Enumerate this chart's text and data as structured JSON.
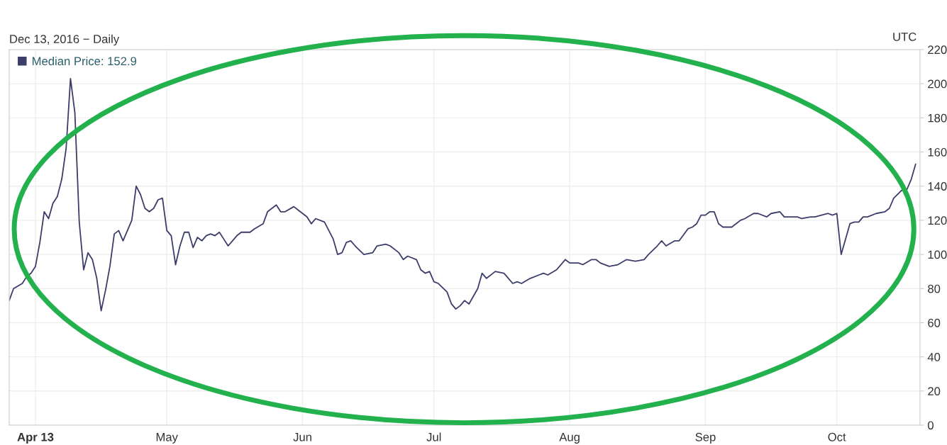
{
  "chart_data": {
    "type": "line",
    "subtitle": "Dec 13, 2016 − Daily",
    "annotations": [
      "UTC"
    ],
    "x": [
      "2013-03-26",
      "2013-03-27",
      "2013-03-29",
      "2013-03-30",
      "2013-03-31",
      "2013-04-01",
      "2013-04-02",
      "2013-04-03",
      "2013-04-04",
      "2013-04-05",
      "2013-04-06",
      "2013-04-07",
      "2013-04-08",
      "2013-04-09",
      "2013-04-10",
      "2013-04-11",
      "2013-04-12",
      "2013-04-13",
      "2013-04-14",
      "2013-04-15",
      "2013-04-16",
      "2013-04-17",
      "2013-04-18",
      "2013-04-19",
      "2013-04-20",
      "2013-04-21",
      "2013-04-22",
      "2013-04-23",
      "2013-04-24",
      "2013-04-25",
      "2013-04-26",
      "2013-04-27",
      "2013-04-28",
      "2013-04-29",
      "2013-04-30",
      "2013-05-01",
      "2013-05-02",
      "2013-05-03",
      "2013-05-04",
      "2013-05-05",
      "2013-05-06",
      "2013-05-07",
      "2013-05-08",
      "2013-05-09",
      "2013-05-10",
      "2013-05-11",
      "2013-05-12",
      "2013-05-13",
      "2013-05-14",
      "2013-05-15",
      "2013-05-16",
      "2013-05-17",
      "2013-05-18",
      "2013-05-20",
      "2013-05-21",
      "2013-05-23",
      "2013-05-24",
      "2013-05-26",
      "2013-05-27",
      "2013-05-28",
      "2013-05-30",
      "2013-05-31",
      "2013-06-02",
      "2013-06-03",
      "2013-06-04",
      "2013-06-06",
      "2013-06-08",
      "2013-06-09",
      "2013-06-10",
      "2013-06-11",
      "2013-06-12",
      "2013-06-13",
      "2013-06-15",
      "2013-06-17",
      "2013-06-18",
      "2013-06-20",
      "2013-06-21",
      "2013-06-23",
      "2013-06-24",
      "2013-06-25",
      "2013-06-27",
      "2013-06-28",
      "2013-06-29",
      "2013-06-30",
      "2013-07-01",
      "2013-07-02",
      "2013-07-04",
      "2013-07-05",
      "2013-07-06",
      "2013-07-07",
      "2013-07-08",
      "2013-07-09",
      "2013-07-11",
      "2013-07-12",
      "2013-07-13",
      "2013-07-15",
      "2013-07-17",
      "2013-07-18",
      "2013-07-19",
      "2013-07-20",
      "2013-07-21",
      "2013-07-23",
      "2013-07-26",
      "2013-07-27",
      "2013-07-29",
      "2013-07-31",
      "2013-08-01",
      "2013-08-03",
      "2013-08-04",
      "2013-08-06",
      "2013-08-07",
      "2013-08-08",
      "2013-08-10",
      "2013-08-12",
      "2013-08-14",
      "2013-08-16",
      "2013-08-18",
      "2013-08-19",
      "2013-08-21",
      "2013-08-22",
      "2013-08-23",
      "2013-08-25",
      "2013-08-26",
      "2013-08-28",
      "2013-08-29",
      "2013-08-30",
      "2013-08-31",
      "2013-09-01",
      "2013-09-02",
      "2013-09-03",
      "2013-09-04",
      "2013-09-05",
      "2013-09-07",
      "2013-09-08",
      "2013-09-09",
      "2013-09-10",
      "2013-09-12",
      "2013-09-13",
      "2013-09-15",
      "2013-09-16",
      "2013-09-18",
      "2013-09-19",
      "2013-09-22",
      "2013-09-23",
      "2013-09-25",
      "2013-09-26",
      "2013-09-29",
      "2013-09-30",
      "2013-10-01",
      "2013-10-02",
      "2013-10-04",
      "2013-10-05",
      "2013-10-06",
      "2013-10-07",
      "2013-10-08",
      "2013-10-10",
      "2013-10-12",
      "2013-10-13",
      "2013-10-14",
      "2013-10-16",
      "2013-10-17",
      "2013-10-18",
      "2013-10-19"
    ],
    "series": [
      {
        "name": "Median Price: 152.9",
        "color": "#3d3d6b",
        "values": [
          73,
          80,
          83,
          87,
          89,
          93,
          107,
          125,
          121,
          130,
          134,
          144,
          162,
          203,
          183,
          119,
          91,
          101,
          97,
          86,
          67,
          79,
          93,
          112,
          114,
          108,
          114,
          120,
          140,
          135,
          127,
          125,
          127,
          132,
          133,
          114,
          111,
          94,
          105,
          113,
          113,
          104,
          110,
          108,
          111,
          112,
          111,
          113,
          109,
          105,
          108,
          111,
          113,
          113,
          115,
          118,
          125,
          129,
          125,
          125,
          128,
          126,
          122,
          118,
          121,
          119,
          109,
          100,
          101,
          107,
          108,
          105,
          100,
          101,
          105,
          106,
          105,
          101,
          97,
          99,
          97,
          91,
          89,
          90,
          84,
          83,
          78,
          71,
          68,
          70,
          73,
          71,
          80,
          89,
          86,
          90,
          89,
          86,
          83,
          84,
          83,
          86,
          89,
          88,
          91,
          97,
          95,
          95,
          94,
          97,
          97,
          95,
          93,
          94,
          97,
          96,
          97,
          100,
          105,
          108,
          105,
          108,
          108,
          115,
          116,
          118,
          123,
          123,
          125,
          125,
          118,
          116,
          116,
          118,
          120,
          121,
          124,
          124,
          122,
          124,
          125,
          122,
          122,
          121,
          122,
          122,
          124,
          123,
          124,
          100,
          118,
          119,
          119,
          122,
          122,
          124,
          125,
          127,
          133,
          138,
          138,
          144,
          152.9
        ]
      }
    ],
    "xlim": [
      "2013-03-26",
      "2013-10-20"
    ],
    "xticks": [
      {
        "value": "2013-04-01",
        "label": "Apr 13"
      },
      {
        "value": "2013-05-01",
        "label": "May"
      },
      {
        "value": "2013-06-01",
        "label": "Jun"
      },
      {
        "value": "2013-07-01",
        "label": "Jul"
      },
      {
        "value": "2013-08-01",
        "label": "Aug"
      },
      {
        "value": "2013-09-01",
        "label": "Sep"
      },
      {
        "value": "2013-10-01",
        "label": "Oct"
      }
    ],
    "ylim": [
      0,
      220
    ],
    "yticks": [
      0,
      20,
      40,
      60,
      80,
      100,
      120,
      140,
      160,
      180,
      200,
      220
    ],
    "grid": true,
    "legend": "top left",
    "marker": "none",
    "line_style": "solid"
  }
}
